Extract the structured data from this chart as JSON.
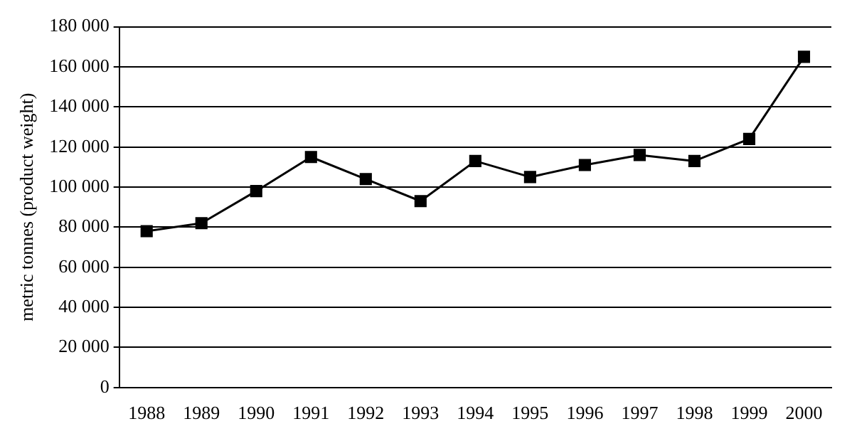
{
  "chart_data": {
    "type": "line",
    "ylabel": "metric tonnes (product weight)",
    "categories": [
      "1988",
      "1989",
      "1990",
      "1991",
      "1992",
      "1993",
      "1994",
      "1995",
      "1996",
      "1997",
      "1998",
      "1999",
      "2000"
    ],
    "series": [
      {
        "color": "#000000",
        "values": [
          78000,
          82000,
          98000,
          115000,
          104000,
          93000,
          113000,
          105000,
          111000,
          116000,
          113000,
          124000,
          165000
        ]
      }
    ],
    "ylim": [
      0,
      180000
    ],
    "yticks": [
      0,
      {
        "value": 20000,
        "label": "20 000"
      },
      {
        "value": 40000,
        "label": "40 000"
      },
      {
        "value": 60000,
        "label": "60 000"
      },
      {
        "value": 80000,
        "label": "80 000"
      },
      {
        "value": 100000,
        "label": "100 000"
      },
      {
        "value": 120000,
        "label": "120 000"
      },
      {
        "value": 140000,
        "label": "140 000"
      },
      {
        "value": 160000,
        "label": "160 000"
      },
      {
        "value": 180000,
        "label": "180 000"
      }
    ],
    "grid": "y",
    "marker": "square",
    "line_style": "solid",
    "legend": false
  }
}
